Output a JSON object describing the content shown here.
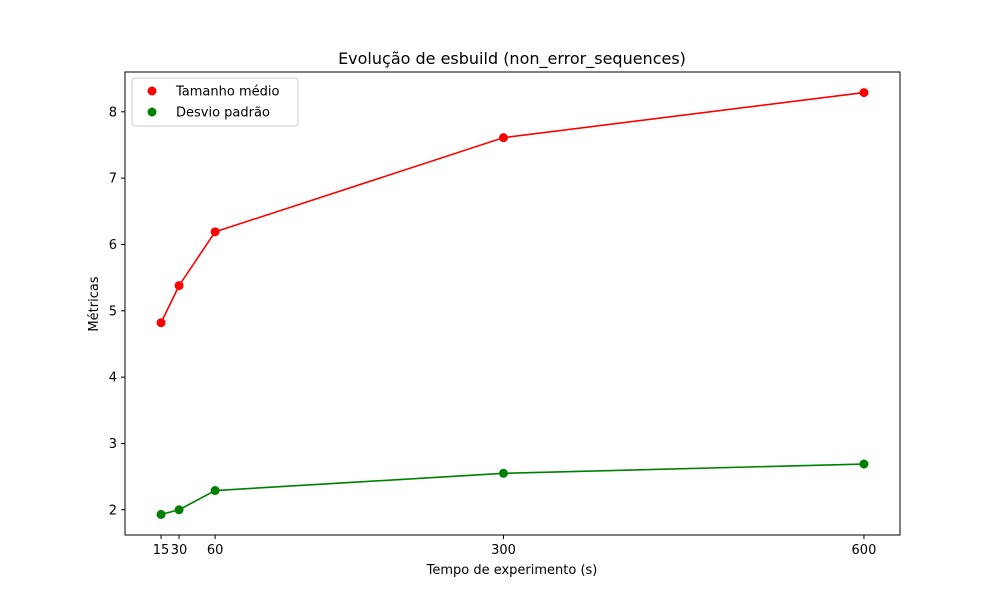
{
  "chart_data": {
    "type": "line",
    "title": "Evolução de esbuild (non_error_sequences)",
    "xlabel": "Tempo de experimento (s)",
    "ylabel": "Métricas",
    "x": [
      15,
      30,
      60,
      300,
      600
    ],
    "xticks": [
      15,
      30,
      60,
      300,
      600
    ],
    "yticks": [
      2,
      3,
      4,
      5,
      6,
      7,
      8
    ],
    "xlim": [
      -15,
      630
    ],
    "ylim": [
      1.62,
      8.6
    ],
    "grid": false,
    "legend_position": "upper-left",
    "series": [
      {
        "name": "Tamanho médio",
        "color": "#ff0000",
        "values": [
          4.82,
          5.38,
          6.19,
          7.61,
          8.29
        ]
      },
      {
        "name": "Desvio padrão",
        "color": "#008000",
        "values": [
          1.93,
          2.0,
          2.29,
          2.55,
          2.69
        ]
      }
    ]
  }
}
